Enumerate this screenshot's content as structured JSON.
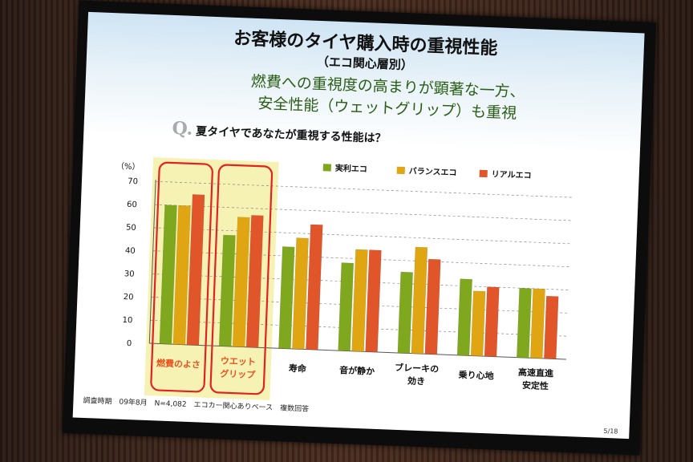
{
  "slide": {
    "title": "お客様のタイヤ購入時の重視性能",
    "subtitle": "（エコ関心層別）",
    "headline_line1": "燃費への重視度の高まりが顕著な一方、",
    "headline_line2": "安全性能（ウェットグリップ）も重視",
    "question_mark": "Q.",
    "question": "夏タイヤであなたが重視する性能は？",
    "footer": "調査時期　09年8月　N=4,082　エコカー関心ありベース　複数回答",
    "page_number": "5/18"
  },
  "colors": {
    "series": [
      "#7fa81e",
      "#e0a512",
      "#e0562a"
    ],
    "highlight_fill": "#f6f2b4",
    "highlight_border": "#e22222"
  },
  "chart_data": {
    "type": "bar",
    "yunit": "（%）",
    "ylim": [
      0,
      70
    ],
    "yticks": [
      0,
      10,
      20,
      30,
      40,
      50,
      60,
      70
    ],
    "grid": true,
    "legend_position": "top-right",
    "categories": [
      [
        "燃費のよさ"
      ],
      [
        "ウエット",
        "グリップ"
      ],
      [
        "寿命"
      ],
      [
        "音が静か"
      ],
      [
        "ブレーキの",
        "効き"
      ],
      [
        "乗り心地"
      ],
      [
        "高速直進",
        "安定性"
      ]
    ],
    "highlighted_categories": [
      0,
      1
    ],
    "series": [
      {
        "name": "実利エコ",
        "values": [
          60,
          48,
          44,
          38,
          35,
          33,
          30
        ]
      },
      {
        "name": "バランスエコ",
        "values": [
          60,
          56,
          48,
          44,
          46,
          28,
          30
        ]
      },
      {
        "name": "リアルエコ",
        "values": [
          65,
          57,
          54,
          44,
          41,
          30,
          27
        ]
      }
    ]
  }
}
